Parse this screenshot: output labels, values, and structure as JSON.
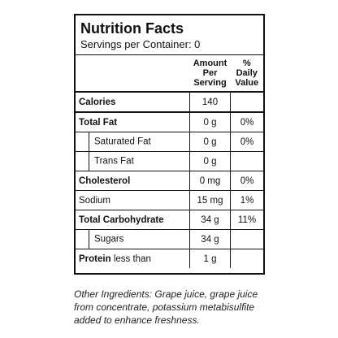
{
  "header": {
    "title": "Nutrition Facts",
    "servings": "Servings per Container: 0"
  },
  "table": {
    "columns": [
      "Amount Per Serving",
      "% Daily Value"
    ],
    "rows": [
      {
        "label": "Calories",
        "amount": "140"
      },
      {
        "label": "Total Fat",
        "amount": "0 g",
        "dv": "0%"
      },
      {
        "label": "Saturated Fat",
        "amount": "0 g",
        "dv": "0%"
      },
      {
        "label": "Trans Fat",
        "amount": "0 g"
      },
      {
        "label": "Cholesterol",
        "amount": "0 mg",
        "dv": "0%"
      },
      {
        "label": "Sodium",
        "amount": "15 mg",
        "dv": "1%"
      },
      {
        "label": "Total Carbohydrate",
        "amount": "34 g",
        "dv": "11%"
      },
      {
        "label": "Sugars",
        "amount": "34 g"
      },
      {
        "label": "Protein",
        "note": "less than",
        "amount": "1 g"
      }
    ]
  },
  "footer": {
    "lines": [
      "Other Ingredients: Grape juice, grape juice",
      "from concentrate, potassium metabisulfite",
      "added to enhance freshness."
    ]
  }
}
